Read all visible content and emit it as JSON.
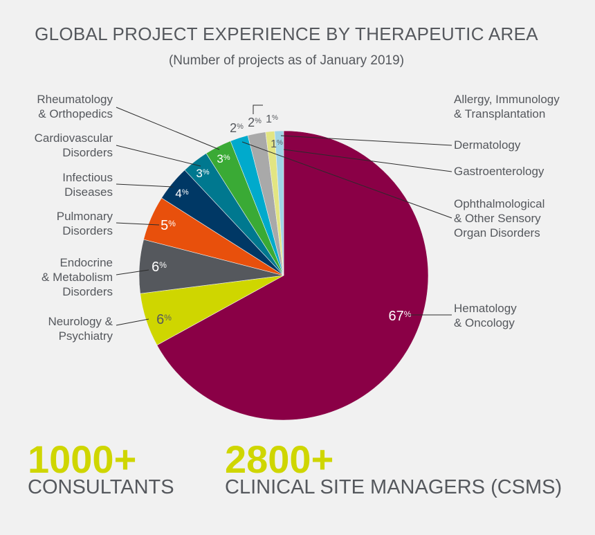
{
  "title": "GLOBAL PROJECT EXPERIENCE BY THERAPEUTIC AREA",
  "subtitle": "(Number of projects as of January 2019)",
  "chart_data": {
    "type": "pie",
    "title": "GLOBAL PROJECT EXPERIENCE BY THERAPEUTIC AREA",
    "subtitle": "(Number of projects as of January 2019)",
    "unit": "%",
    "slices": [
      {
        "label": "Hematology & Oncology",
        "value": 67,
        "display": "67",
        "color": "#8a0046",
        "text_color": "#ffffff"
      },
      {
        "label": "Neurology & Psychiatry",
        "value": 6,
        "display": "6",
        "color": "#cfd600",
        "text_color": "#55585d"
      },
      {
        "label": "Endocrine & Metabolism Disorders",
        "value": 6,
        "display": "6",
        "color": "#55585d",
        "text_color": "#ffffff"
      },
      {
        "label": "Pulmonary Disorders",
        "value": 5,
        "display": "5",
        "color": "#e8500c",
        "text_color": "#ffffff"
      },
      {
        "label": "Infectious Diseases",
        "value": 4,
        "display": "4",
        "color": "#003865",
        "text_color": "#ffffff"
      },
      {
        "label": "Cardiovascular Disorders",
        "value": 3,
        "display": "3",
        "color": "#00788f",
        "text_color": "#ffffff"
      },
      {
        "label": "Rheumatology & Orthopedics",
        "value": 3,
        "display": "3",
        "color": "#3aaa35",
        "text_color": "#ffffff"
      },
      {
        "label": "Ophthalmological & Other Sensory Organ Disorders",
        "value": 2,
        "display": "2",
        "color": "#00aacc",
        "text_color": "#55585d"
      },
      {
        "label": "Allergy, Immunology & Transplantation",
        "value": 2,
        "display": "2",
        "color": "#a9a9a9",
        "text_color": "#55585d"
      },
      {
        "label": "Gastroenterology",
        "value": 1,
        "display": "1",
        "color": "#e2e582",
        "text_color": "#55585d"
      },
      {
        "label": "Dermatology",
        "value": 1,
        "display": "1",
        "color": "#9fd4e6",
        "text_color": "#55585d"
      }
    ]
  },
  "callouts": [
    {
      "lines": [
        "Rheumatology",
        "& Orthopedics"
      ],
      "color": "#55585d"
    },
    {
      "lines": [
        "Cardiovascular",
        "Disorders"
      ],
      "color": "#55585d"
    },
    {
      "lines": [
        "Infectious",
        "Diseases"
      ],
      "color": "#55585d"
    },
    {
      "lines": [
        "Pulmonary",
        "Disorders"
      ],
      "color": "#55585d"
    },
    {
      "lines": [
        "Endocrine",
        "& Metabolism",
        "Disorders"
      ],
      "color": "#55585d"
    },
    {
      "lines": [
        "Neurology &",
        "Psychiatry"
      ],
      "color": "#55585d"
    },
    {
      "lines": [
        "Allergy, Immunology",
        "& Transplantation"
      ],
      "color": "#55585d"
    },
    {
      "lines": [
        "Dermatology"
      ],
      "color": "#55585d"
    },
    {
      "lines": [
        "Gastroenterology"
      ],
      "color": "#55585d"
    },
    {
      "lines": [
        "Ophthalmological",
        "& Other Sensory",
        "Organ Disorders"
      ],
      "color": "#55585d"
    },
    {
      "lines": [
        "Hematology",
        "& Oncology"
      ],
      "color": "#55585d"
    }
  ],
  "stats": [
    {
      "number": "1000+",
      "label": "CONSULTANTS"
    },
    {
      "number": "2800+",
      "label": "CLINICAL SITE MANAGERS (CSMS)"
    }
  ]
}
